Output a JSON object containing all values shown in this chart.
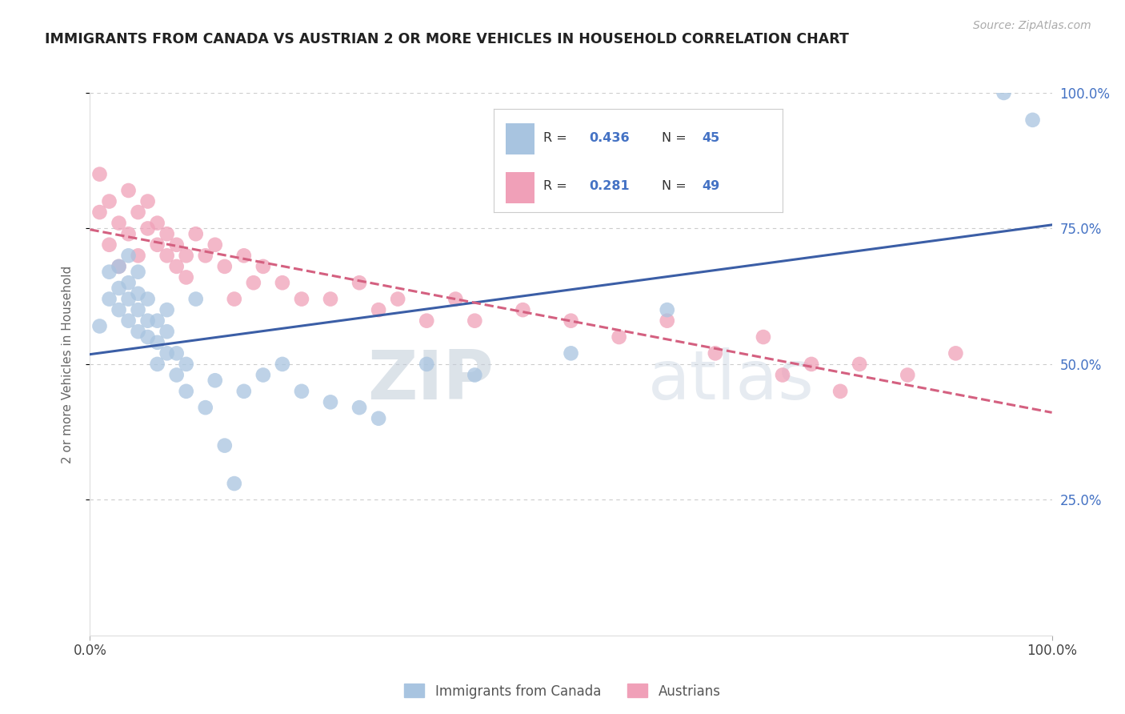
{
  "title": "IMMIGRANTS FROM CANADA VS AUSTRIAN 2 OR MORE VEHICLES IN HOUSEHOLD CORRELATION CHART",
  "source": "Source: ZipAtlas.com",
  "ylabel": "2 or more Vehicles in Household",
  "blue_R": 0.436,
  "blue_N": 45,
  "pink_R": 0.281,
  "pink_N": 49,
  "blue_color": "#a8c4e0",
  "pink_color": "#f0a0b8",
  "blue_line_color": "#3b5ea6",
  "pink_line_color": "#d46080",
  "legend_blue_label": "Immigrants from Canada",
  "legend_pink_label": "Austrians",
  "watermark_zip": "ZIP",
  "watermark_atlas": "atlas",
  "background_color": "#ffffff",
  "grid_color": "#cccccc",
  "blue_x": [
    1,
    2,
    2,
    3,
    3,
    3,
    4,
    4,
    4,
    4,
    5,
    5,
    5,
    5,
    6,
    6,
    6,
    7,
    7,
    7,
    8,
    8,
    8,
    9,
    9,
    10,
    10,
    11,
    12,
    13,
    14,
    15,
    16,
    18,
    20,
    22,
    25,
    28,
    30,
    35,
    40,
    50,
    60,
    95,
    98
  ],
  "blue_y": [
    57,
    62,
    67,
    60,
    64,
    68,
    58,
    62,
    65,
    70,
    56,
    60,
    63,
    67,
    55,
    58,
    62,
    50,
    54,
    58,
    52,
    56,
    60,
    48,
    52,
    45,
    50,
    62,
    42,
    47,
    35,
    28,
    45,
    48,
    50,
    45,
    43,
    42,
    40,
    50,
    48,
    52,
    60,
    100,
    95
  ],
  "pink_x": [
    1,
    1,
    2,
    2,
    3,
    3,
    4,
    4,
    5,
    5,
    6,
    6,
    7,
    7,
    8,
    8,
    9,
    9,
    10,
    10,
    11,
    12,
    13,
    14,
    15,
    16,
    17,
    18,
    20,
    22,
    25,
    28,
    30,
    32,
    35,
    38,
    40,
    45,
    50,
    55,
    60,
    65,
    70,
    72,
    75,
    78,
    80,
    85,
    90
  ],
  "pink_y": [
    78,
    85,
    72,
    80,
    68,
    76,
    74,
    82,
    70,
    78,
    75,
    80,
    72,
    76,
    70,
    74,
    68,
    72,
    66,
    70,
    74,
    70,
    72,
    68,
    62,
    70,
    65,
    68,
    65,
    62,
    62,
    65,
    60,
    62,
    58,
    62,
    58,
    60,
    58,
    55,
    58,
    52,
    55,
    48,
    50,
    45,
    50,
    48,
    52
  ]
}
